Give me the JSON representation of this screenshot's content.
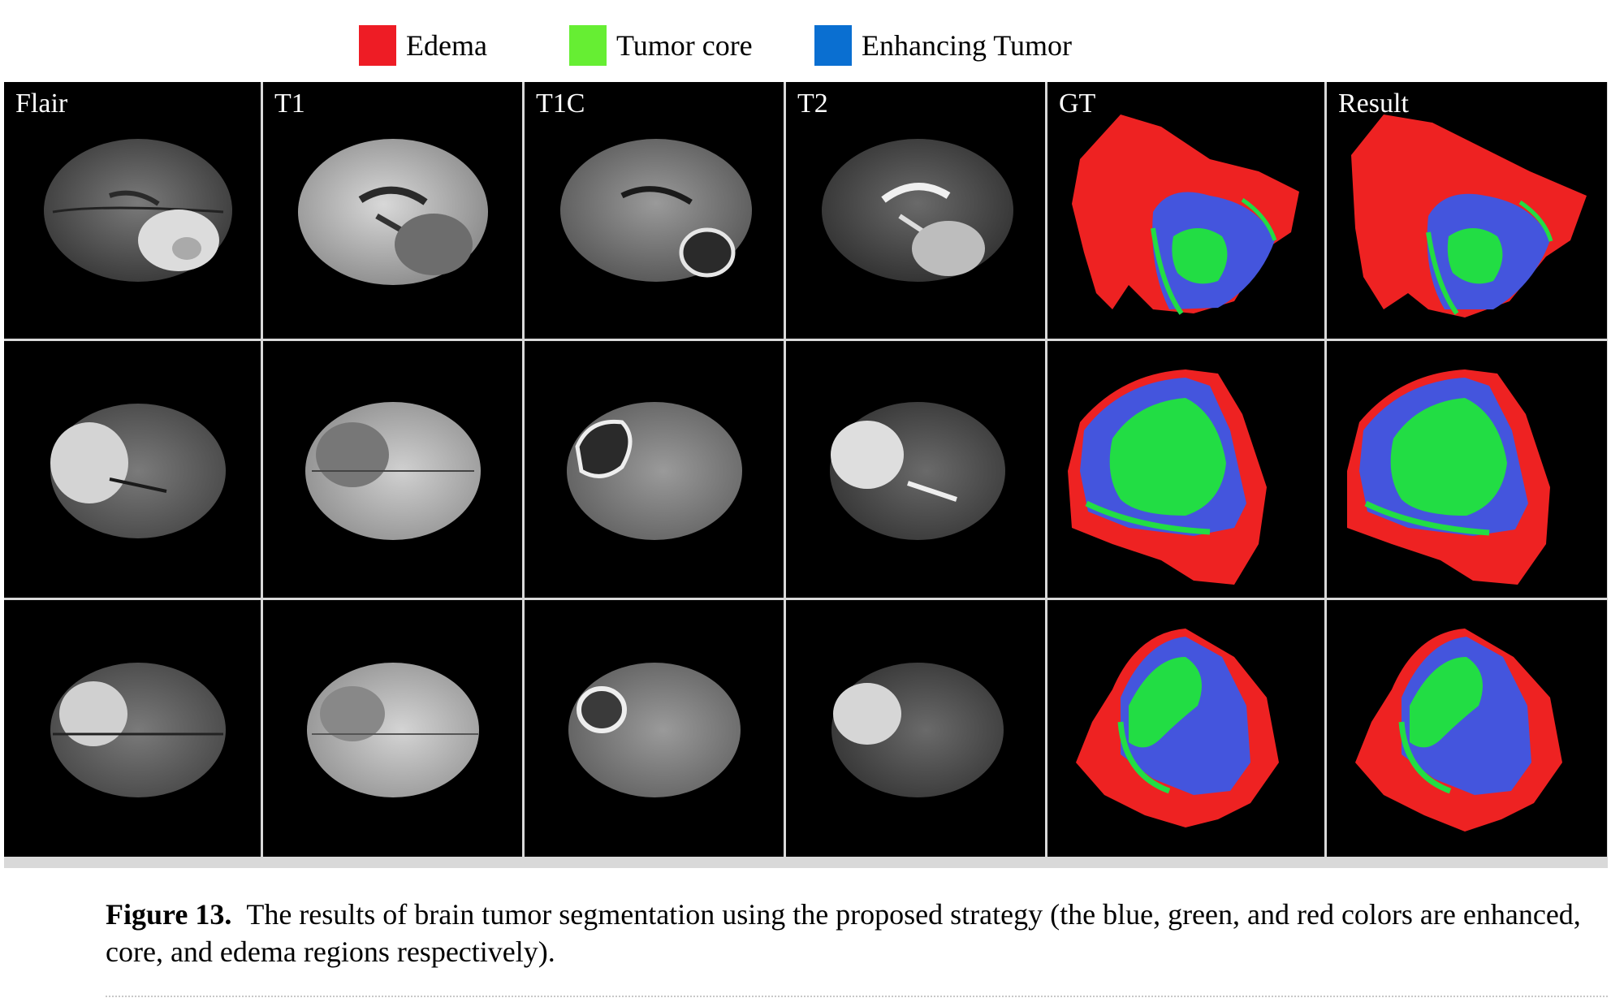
{
  "legend": [
    {
      "label": "Edema",
      "color": "#ee1c25"
    },
    {
      "label": "Tumor core",
      "color": "#66ee33"
    },
    {
      "label": "Enhancing Tumor",
      "color": "#0a6fd1"
    }
  ],
  "columns": [
    "Flair",
    "T1",
    "T1C",
    "T2",
    "GT",
    "Result"
  ],
  "segmentation_colors": {
    "edema": "#ee2222",
    "core": "#22dd44",
    "enhancing": "#4455dd"
  },
  "caption": {
    "label": "Figure 13.",
    "text": "The results of brain tumor segmentation using the proposed strategy (the blue, green, and red colors are enhanced, core, and edema regions respectively)."
  }
}
